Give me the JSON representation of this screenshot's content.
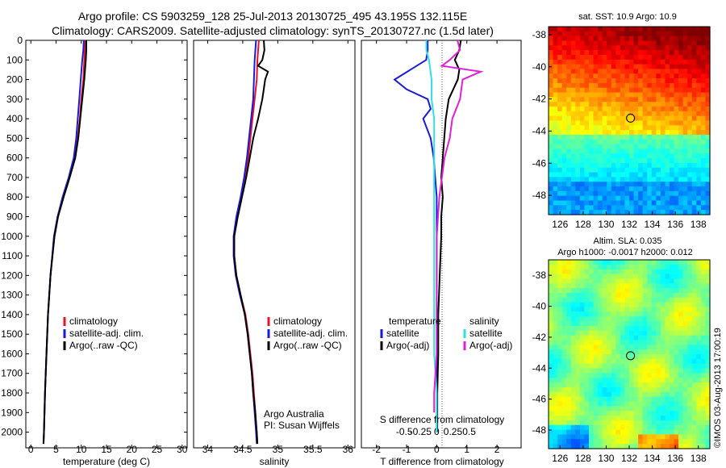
{
  "header": {
    "line1": "Argo profile: CS 5903259_128 25-Jul-2013 20130725_495 43.195S 132.115E",
    "line2": "Climatology: CARS2009. Satellite-adjusted climatology: synTS_20130727.nc (1.5d later)"
  },
  "colors": {
    "climatology": "#e8102a",
    "satellite": "#1a1ad8",
    "argo": "#000000",
    "sat_salinity": "#30e0e8",
    "argo_adj_salinity": "#e020d8"
  },
  "chart_data": [
    {
      "type": "line",
      "id": "temperature",
      "xlabel": "temperature (deg C)",
      "xlim": [
        -1,
        31
      ],
      "xticks": [
        0,
        5,
        10,
        15,
        20,
        25,
        30
      ],
      "ylim": [
        2080,
        0
      ],
      "yticks": [
        0,
        100,
        200,
        300,
        400,
        500,
        600,
        700,
        800,
        900,
        1000,
        1100,
        1200,
        1300,
        1400,
        1500,
        1600,
        1700,
        1800,
        1900,
        2000
      ],
      "legend": [
        "climatology",
        "satellite-adj. clim.",
        "Argo(..raw -QC)"
      ],
      "series": [
        {
          "name": "climatology",
          "color_key": "climatology",
          "depth": [
            0,
            50,
            100,
            200,
            300,
            400,
            500,
            600,
            700,
            800,
            900,
            1000,
            1200,
            1400,
            1600,
            1800,
            2000,
            2060
          ],
          "values": [
            10.8,
            10.7,
            10.6,
            10.4,
            10.0,
            9.7,
            9.3,
            8.7,
            7.6,
            6.4,
            5.3,
            4.6,
            3.9,
            3.4,
            3.1,
            2.8,
            2.6,
            2.5
          ]
        },
        {
          "name": "satellite-adj. clim.",
          "color_key": "satellite",
          "depth": [
            0,
            50,
            100,
            200,
            300,
            400,
            500,
            600,
            700,
            800,
            900,
            1000,
            1200,
            1400,
            1600,
            1800,
            2000,
            2060
          ],
          "values": [
            10.5,
            10.4,
            10.2,
            9.9,
            9.6,
            9.3,
            9.0,
            8.5,
            7.5,
            6.3,
            5.3,
            4.6,
            3.9,
            3.4,
            3.1,
            2.8,
            2.6,
            2.5
          ]
        },
        {
          "name": "Argo(..raw -QC)",
          "color_key": "argo",
          "depth": [
            0,
            50,
            100,
            200,
            300,
            400,
            500,
            600,
            700,
            800,
            900,
            1000,
            1200,
            1400,
            1600,
            1800,
            2000,
            2060
          ],
          "values": [
            11.0,
            11.0,
            10.9,
            10.6,
            10.2,
            9.8,
            9.4,
            8.8,
            7.7,
            6.5,
            5.4,
            4.7,
            3.9,
            3.4,
            3.1,
            2.8,
            2.6,
            2.5
          ]
        }
      ]
    },
    {
      "type": "line",
      "id": "salinity",
      "xlabel": "salinity",
      "xlim": [
        33.8,
        36.1
      ],
      "xticks": [
        34,
        34.5,
        35,
        35.5,
        36
      ],
      "xtick_labels": [
        "34",
        "34.5",
        "35",
        "35.5",
        "36"
      ],
      "ylim": [
        2080,
        0
      ],
      "legend": [
        "climatology",
        "satellite-adj. clim.",
        "Argo(..raw -QC)"
      ],
      "annotation": [
        "Argo Australia",
        "PI: Susan Wijffels"
      ],
      "series": [
        {
          "name": "climatology",
          "color_key": "climatology",
          "depth": [
            0,
            100,
            200,
            300,
            400,
            500,
            600,
            700,
            800,
            900,
            1000,
            1100,
            1200,
            1300,
            1400,
            1500,
            1600,
            1700,
            1800,
            1900,
            2000,
            2060
          ],
          "values": [
            34.73,
            34.71,
            34.7,
            34.67,
            34.64,
            34.61,
            34.58,
            34.54,
            34.48,
            34.42,
            34.38,
            34.38,
            34.41,
            34.47,
            34.54,
            34.58,
            34.61,
            34.64,
            34.66,
            34.68,
            34.7,
            34.71
          ]
        },
        {
          "name": "satellite-adj. clim.",
          "color_key": "satellite",
          "depth": [
            0,
            100,
            200,
            300,
            400,
            500,
            600,
            700,
            800,
            900,
            1000,
            1100,
            1200,
            1300,
            1400,
            1500,
            1600,
            1700,
            1800,
            1900,
            2000,
            2060
          ],
          "values": [
            34.69,
            34.67,
            34.66,
            34.65,
            34.62,
            34.59,
            34.56,
            34.52,
            34.47,
            34.41,
            34.37,
            34.37,
            34.4,
            34.46,
            34.53,
            34.57,
            34.6,
            34.63,
            34.65,
            34.67,
            34.69,
            34.7
          ]
        },
        {
          "name": "Argo(..raw -QC)",
          "color_key": "argo",
          "depth": [
            0,
            50,
            100,
            130,
            160,
            200,
            250,
            300,
            400,
            500,
            600,
            700,
            800,
            900,
            1000,
            1100,
            1200,
            1300,
            1400,
            1500,
            1600,
            1700,
            1800,
            1900,
            2000,
            2060
          ],
          "values": [
            34.8,
            34.81,
            34.78,
            34.72,
            34.86,
            34.82,
            34.8,
            34.78,
            34.72,
            34.65,
            34.6,
            34.55,
            34.49,
            34.43,
            34.38,
            34.38,
            34.41,
            34.47,
            34.53,
            34.57,
            34.6,
            34.63,
            34.65,
            34.68,
            34.7,
            34.71
          ]
        }
      ]
    },
    {
      "type": "line",
      "id": "difference",
      "xlabel": "T difference from climatology",
      "xlabel2": "S difference from climatology",
      "xlim": [
        -2.5,
        2.8
      ],
      "xticks": [
        -2,
        -1,
        0,
        1,
        2
      ],
      "xticks2": [
        -0.5,
        -0.25,
        0,
        0.25,
        0.5
      ],
      "xtick2_labels": [
        "-0.5",
        "-0.25",
        "0",
        "0.25",
        "0.5"
      ],
      "ylim": [
        2080,
        0
      ],
      "legend_temperature": {
        "title": "temperature",
        "items": [
          "satellite",
          "Argo(-adj)"
        ]
      },
      "legend_salinity": {
        "title": "salinity",
        "items": [
          "satellite",
          "Argo(-adj)"
        ]
      },
      "series": [
        {
          "name": "T satellite",
          "color_key": "satellite",
          "depth": [
            0,
            50,
            100,
            200,
            250,
            300,
            350,
            400,
            500,
            600,
            700,
            800,
            900,
            1000,
            1200,
            1400,
            1600,
            1800,
            2000
          ],
          "values": [
            -0.3,
            -0.3,
            -0.35,
            -1.4,
            -1.0,
            -0.3,
            -0.2,
            -0.45,
            -0.2,
            -0.1,
            -0.05,
            0.0,
            0.0,
            0.0,
            0.0,
            0.0,
            0.0,
            0.0,
            0.0
          ]
        },
        {
          "name": "T Argo(-adj)",
          "color_key": "argo",
          "depth": [
            0,
            50,
            100,
            150,
            200,
            300,
            400,
            500,
            600,
            700,
            800,
            900,
            1000,
            1200,
            1400,
            1600,
            1800,
            2000
          ],
          "values": [
            0.8,
            0.75,
            0.6,
            0.75,
            0.7,
            0.4,
            0.3,
            0.25,
            0.2,
            0.15,
            0.2,
            0.15,
            0.15,
            0.1,
            0.05,
            0.05,
            0.02,
            0.02
          ]
        },
        {
          "name": "S satellite",
          "color_key": "sat_salinity",
          "depth": [
            0,
            50,
            100,
            200,
            300,
            400,
            500,
            600,
            800,
            1000,
            1200,
            1400,
            1600,
            1800,
            2000
          ],
          "values": [
            -0.04,
            -0.04,
            -0.03,
            -0.02,
            -0.02,
            -0.01,
            -0.01,
            -0.01,
            -0.01,
            -0.01,
            -0.01,
            -0.01,
            -0.01,
            0.0,
            0.0
          ]
        },
        {
          "name": "S Argo(-adj)",
          "color_key": "argo_adj_salinity",
          "depth": [
            0,
            50,
            100,
            130,
            160,
            200,
            300,
            400,
            500,
            600,
            700,
            800,
            1000,
            1200,
            1400,
            1600,
            1800,
            1900
          ],
          "values": [
            0.08,
            0.09,
            0.05,
            0.02,
            0.17,
            0.1,
            0.09,
            0.06,
            0.05,
            0.03,
            0.02,
            0.01,
            0.0,
            0.0,
            0.0,
            0.0,
            -0.01,
            -0.01
          ]
        }
      ]
    },
    {
      "type": "heatmap",
      "id": "sst_map",
      "title": "sat. SST: 10.9 Argo: 10.9",
      "xlim": [
        125,
        139
      ],
      "ylim": [
        -49.2,
        -37.5
      ],
      "xticks": [
        126,
        128,
        130,
        132,
        134,
        136,
        138
      ],
      "yticks": [
        -38,
        -40,
        -42,
        -44,
        -46,
        -48
      ],
      "marker": {
        "lon": 132.115,
        "lat": -43.195
      }
    },
    {
      "type": "heatmap",
      "id": "sla_map",
      "title": "Altim. SLA: 0.035",
      "subtitle": "Argo h1000: -0.0017 h2000: 0.012",
      "xlim": [
        125,
        139
      ],
      "ylim": [
        -49.2,
        -37.0
      ],
      "xticks": [
        126,
        128,
        130,
        132,
        134,
        136,
        138
      ],
      "yticks": [
        -38,
        -40,
        -42,
        -44,
        -46,
        -48
      ],
      "marker": {
        "lon": 132.115,
        "lat": -43.195
      }
    }
  ],
  "footer_stamp": "©IMOS 03-Aug-2013 17:00:19"
}
